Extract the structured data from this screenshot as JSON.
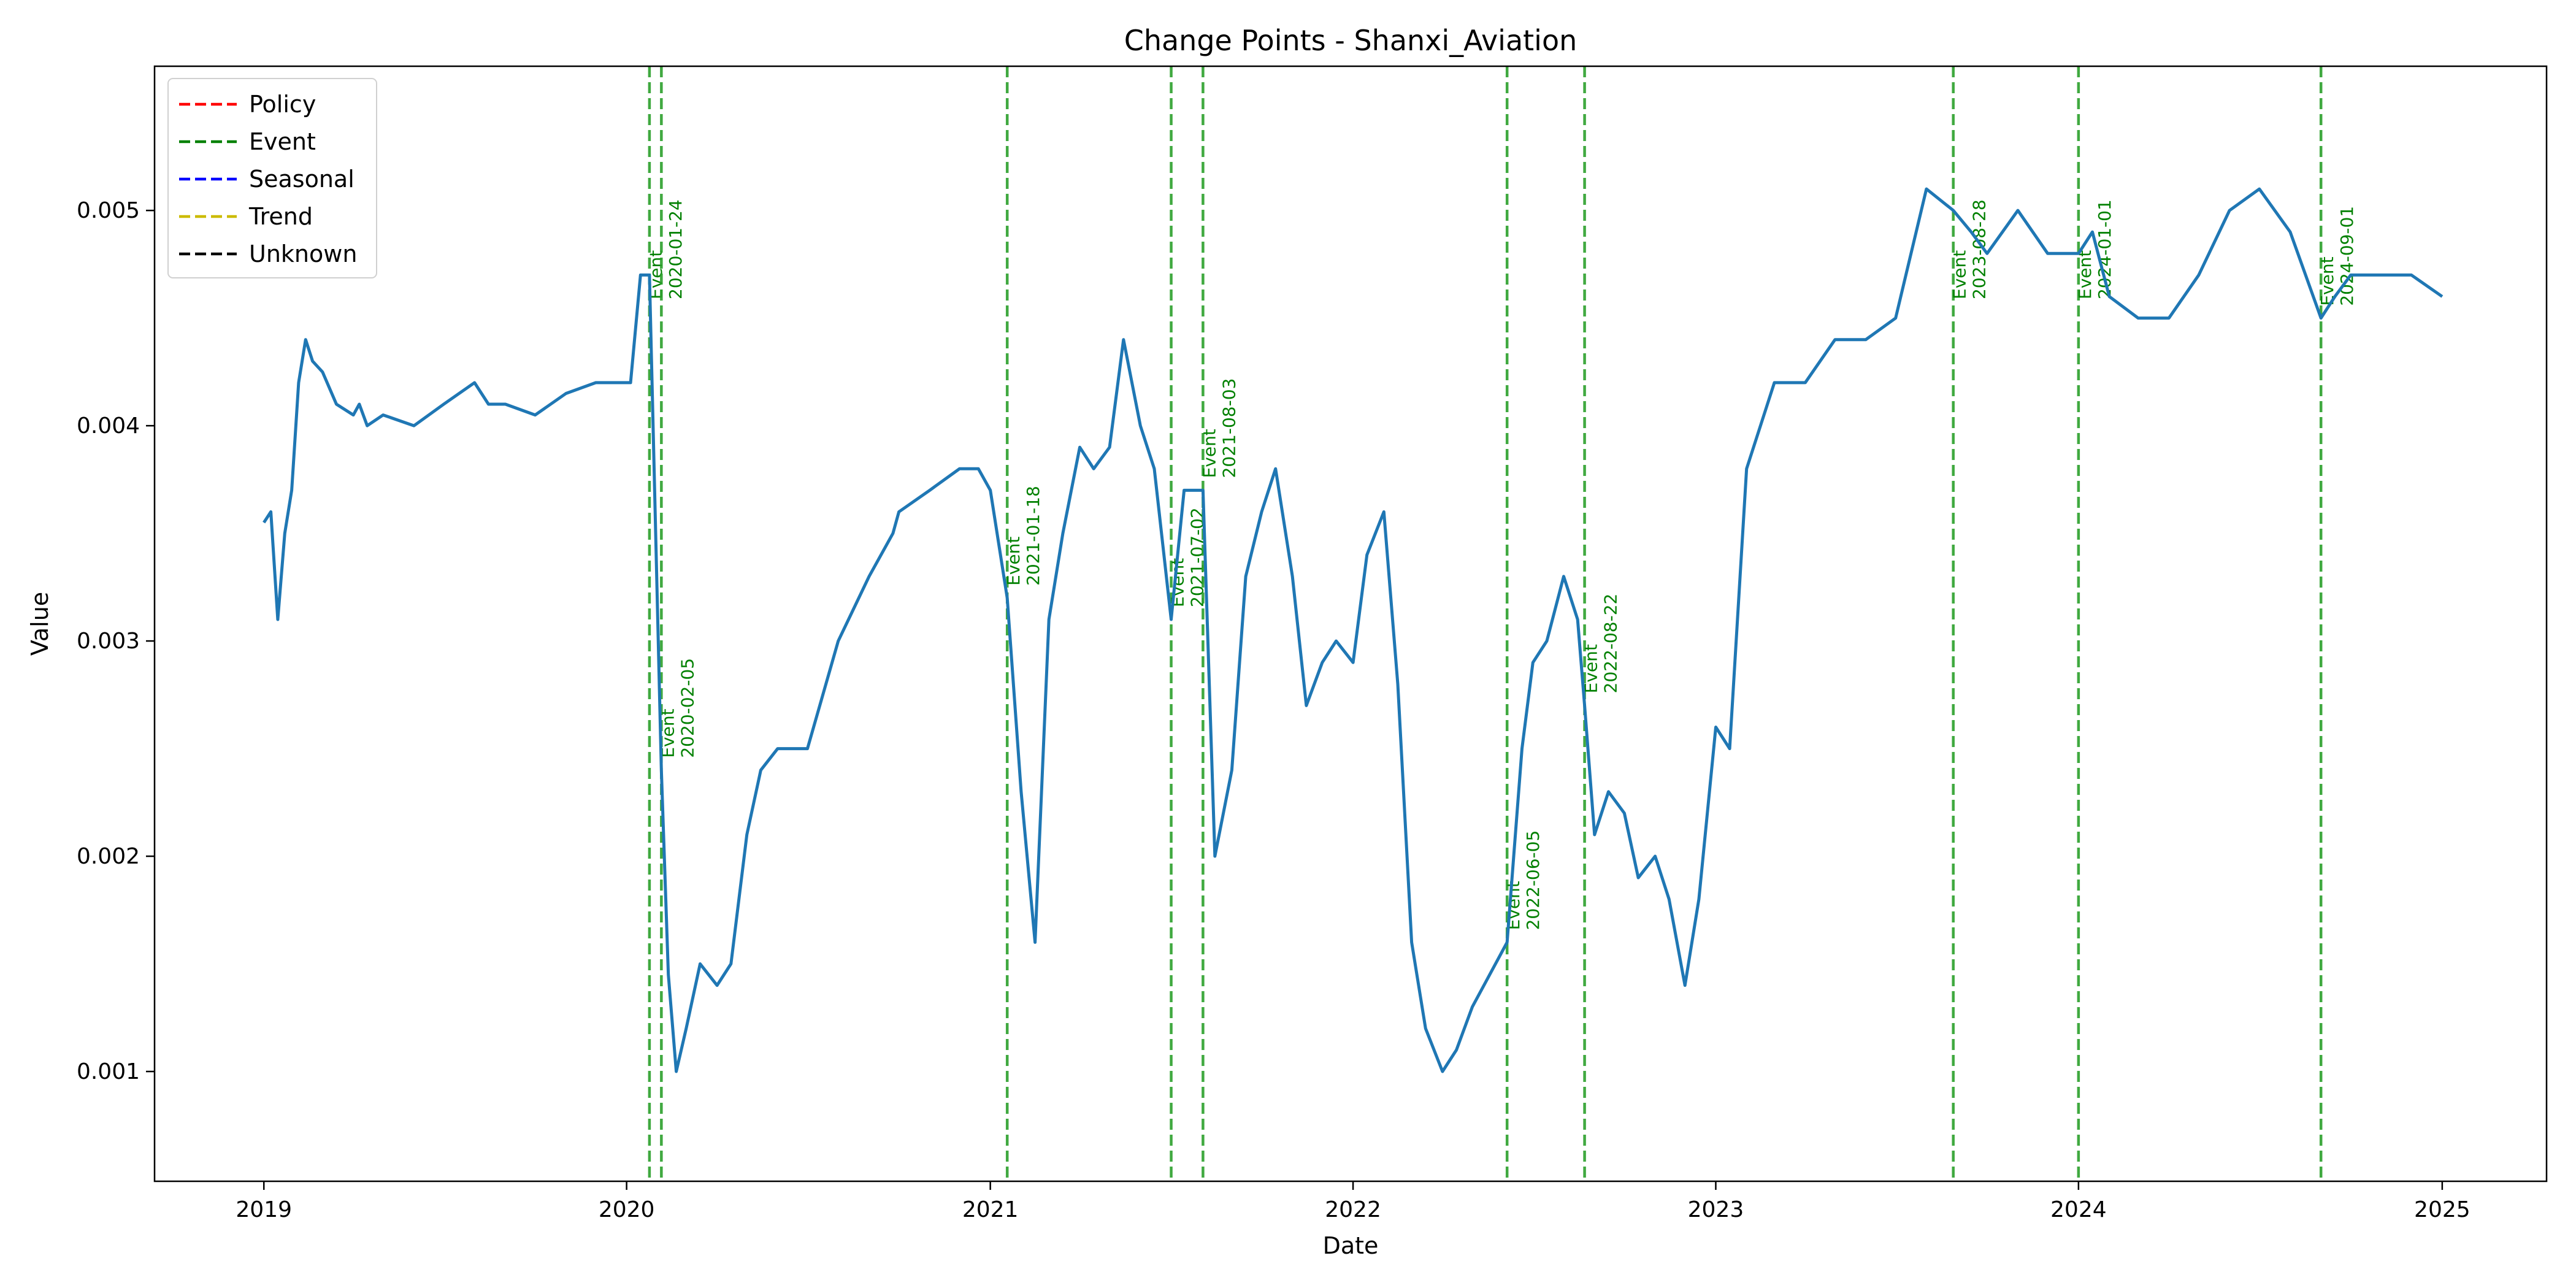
{
  "chart_data": {
    "type": "line",
    "title": "Change Points - Shanxi_Aviation",
    "xlabel": "Date",
    "ylabel": "Value",
    "xlim": [
      "2018-09-13",
      "2025-04-16"
    ],
    "ylim": [
      0.00049,
      0.00567
    ],
    "x_ticks": [
      "2019",
      "2020",
      "2021",
      "2022",
      "2023",
      "2024",
      "2025"
    ],
    "y_ticks": [
      "0.001",
      "0.002",
      "0.003",
      "0.004",
      "0.005"
    ],
    "grid": false,
    "legend_position": "top-left",
    "legend": [
      {
        "label": "Policy",
        "color": "#ff0000"
      },
      {
        "label": "Event",
        "color": "#008000"
      },
      {
        "label": "Seasonal",
        "color": "#0000ff"
      },
      {
        "label": "Trend",
        "color": "#ccbb00"
      },
      {
        "label": "Unknown",
        "color": "#000000"
      }
    ],
    "series": [
      {
        "color": "#1f77b4",
        "x": [
          "2019-01-01",
          "2019-01-08",
          "2019-01-15",
          "2019-01-22",
          "2019-01-29",
          "2019-02-05",
          "2019-02-12",
          "2019-02-19",
          "2019-03-01",
          "2019-03-15",
          "2019-04-01",
          "2019-04-07",
          "2019-04-15",
          "2019-05-01",
          "2019-06-01",
          "2019-07-01",
          "2019-08-01",
          "2019-08-15",
          "2019-09-01",
          "2019-10-01",
          "2019-11-01",
          "2019-12-01",
          "2019-12-20",
          "2020-01-05",
          "2020-01-15",
          "2020-01-24",
          "2020-02-05",
          "2020-02-12",
          "2020-02-20",
          "2020-03-01",
          "2020-03-15",
          "2020-04-01",
          "2020-04-15",
          "2020-05-01",
          "2020-05-15",
          "2020-06-01",
          "2020-07-01",
          "2020-08-01",
          "2020-09-01",
          "2020-09-25",
          "2020-10-01",
          "2020-11-01",
          "2020-12-01",
          "2020-12-20",
          "2021-01-01",
          "2021-01-18",
          "2021-02-01",
          "2021-02-15",
          "2021-03-01",
          "2021-03-15",
          "2021-04-01",
          "2021-04-15",
          "2021-05-01",
          "2021-05-15",
          "2021-06-01",
          "2021-06-15",
          "2021-07-02",
          "2021-07-15",
          "2021-08-03",
          "2021-08-15",
          "2021-09-01",
          "2021-09-15",
          "2021-10-01",
          "2021-10-15",
          "2021-11-01",
          "2021-11-15",
          "2021-12-01",
          "2021-12-15",
          "2022-01-01",
          "2022-01-15",
          "2022-02-01",
          "2022-02-15",
          "2022-03-01",
          "2022-03-15",
          "2022-04-01",
          "2022-04-15",
          "2022-05-01",
          "2022-06-05",
          "2022-06-20",
          "2022-07-01",
          "2022-07-15",
          "2022-08-01",
          "2022-08-15",
          "2022-08-22",
          "2022-09-01",
          "2022-09-15",
          "2022-10-01",
          "2022-10-15",
          "2022-11-01",
          "2022-11-15",
          "2022-12-01",
          "2022-12-15",
          "2023-01-01",
          "2023-01-15",
          "2023-02-01",
          "2023-03-01",
          "2023-04-01",
          "2023-05-01",
          "2023-06-01",
          "2023-07-01",
          "2023-08-01",
          "2023-08-28",
          "2023-09-15",
          "2023-10-01",
          "2023-11-01",
          "2023-12-01",
          "2024-01-01",
          "2024-01-15",
          "2024-02-01",
          "2024-03-01",
          "2024-04-01",
          "2024-05-01",
          "2024-06-01",
          "2024-07-01",
          "2024-08-01",
          "2024-09-01",
          "2024-09-15",
          "2024-10-01",
          "2024-11-01",
          "2024-12-01",
          "2025-01-01"
        ],
        "y": [
          0.00355,
          0.0036,
          0.0031,
          0.0035,
          0.0037,
          0.0042,
          0.0044,
          0.0043,
          0.00425,
          0.0041,
          0.00405,
          0.0041,
          0.004,
          0.00405,
          0.004,
          0.0041,
          0.0042,
          0.0041,
          0.0041,
          0.00405,
          0.00415,
          0.0042,
          0.0042,
          0.0042,
          0.0047,
          0.0047,
          0.0024,
          0.00145,
          0.001,
          0.0012,
          0.0015,
          0.0014,
          0.0015,
          0.0021,
          0.0024,
          0.0025,
          0.0025,
          0.003,
          0.0033,
          0.0035,
          0.0036,
          0.0037,
          0.0038,
          0.0038,
          0.0037,
          0.0032,
          0.0023,
          0.0016,
          0.0031,
          0.0035,
          0.0039,
          0.0038,
          0.0039,
          0.0044,
          0.004,
          0.0038,
          0.0031,
          0.0037,
          0.0037,
          0.002,
          0.0024,
          0.0033,
          0.0036,
          0.0038,
          0.0033,
          0.0027,
          0.0029,
          0.003,
          0.0029,
          0.0034,
          0.0036,
          0.0028,
          0.0016,
          0.0012,
          0.001,
          0.0011,
          0.0013,
          0.0016,
          0.0025,
          0.0029,
          0.003,
          0.0033,
          0.0031,
          0.0027,
          0.0021,
          0.0023,
          0.0022,
          0.0019,
          0.002,
          0.0018,
          0.0014,
          0.0018,
          0.0026,
          0.0025,
          0.0038,
          0.0042,
          0.0042,
          0.0044,
          0.0044,
          0.0045,
          0.0051,
          0.005,
          0.0049,
          0.0048,
          0.005,
          0.0048,
          0.0048,
          0.0049,
          0.0046,
          0.0045,
          0.0045,
          0.0047,
          0.005,
          0.0051,
          0.0049,
          0.0045,
          0.0046,
          0.0047,
          0.0047,
          0.0047,
          0.0046
        ]
      }
    ],
    "change_points": [
      {
        "category": "Event",
        "date": "2020-01-24",
        "label": "Event",
        "date_label": "2020-01-24",
        "color": "#2ca02c"
      },
      {
        "category": "Event",
        "date": "2020-02-05",
        "label": "Event",
        "date_label": "2020-02-05",
        "color": "#2ca02c"
      },
      {
        "category": "Event",
        "date": "2021-01-18",
        "label": "Event",
        "date_label": "2021-01-18",
        "color": "#2ca02c"
      },
      {
        "category": "Event",
        "date": "2021-07-02",
        "label": "Event",
        "date_label": "2021-07-02",
        "color": "#2ca02c"
      },
      {
        "category": "Event",
        "date": "2021-08-03",
        "label": "Event",
        "date_label": "2021-08-03",
        "color": "#2ca02c"
      },
      {
        "category": "Event",
        "date": "2022-06-05",
        "label": "Event",
        "date_label": "2022-06-05",
        "color": "#2ca02c"
      },
      {
        "category": "Event",
        "date": "2022-08-22",
        "label": "Event",
        "date_label": "2022-08-22",
        "color": "#2ca02c"
      },
      {
        "category": "Event",
        "date": "2023-08-28",
        "label": "Event",
        "date_label": "2023-08-28",
        "color": "#2ca02c"
      },
      {
        "category": "Event",
        "date": "2024-01-01",
        "label": "Event",
        "date_label": "2024-01-01",
        "color": "#2ca02c"
      },
      {
        "category": "Event",
        "date": "2024-09-01",
        "label": "Event",
        "date_label": "2024-09-01",
        "color": "#2ca02c"
      }
    ]
  }
}
